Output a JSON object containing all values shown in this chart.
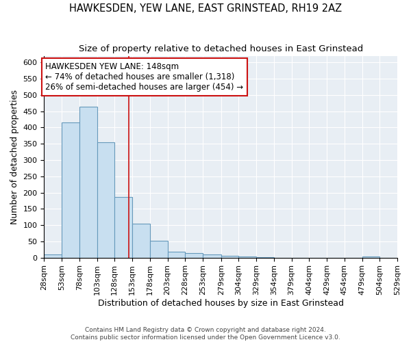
{
  "title": "HAWKESDEN, YEW LANE, EAST GRINSTEAD, RH19 2AZ",
  "subtitle": "Size of property relative to detached houses in East Grinstead",
  "xlabel": "Distribution of detached houses by size in East Grinstead",
  "ylabel": "Number of detached properties",
  "property_size": 148,
  "annotation_title": "HAWKESDEN YEW LANE: 148sqm",
  "annotation_line1": "← 74% of detached houses are smaller (1,318)",
  "annotation_line2": "26% of semi-detached houses are larger (454) →",
  "footer_line1": "Contains HM Land Registry data © Crown copyright and database right 2024.",
  "footer_line2": "Contains public sector information licensed under the Open Government Licence v3.0.",
  "bar_color": "#c8dff0",
  "bar_edge_color": "#6699bb",
  "vline_color": "#cc1111",
  "annotation_box_color": "#cc1111",
  "background_color": "#e8eef4",
  "bins": [
    28,
    53,
    78,
    103,
    128,
    153,
    178,
    203,
    228,
    253,
    279,
    304,
    329,
    354,
    379,
    404,
    429,
    454,
    479,
    504,
    529
  ],
  "counts": [
    10,
    415,
    465,
    355,
    187,
    105,
    52,
    18,
    14,
    10,
    5,
    3,
    1,
    0,
    0,
    0,
    0,
    0,
    3,
    0
  ],
  "ylim": [
    0,
    620
  ],
  "yticks": [
    0,
    50,
    100,
    150,
    200,
    250,
    300,
    350,
    400,
    450,
    500,
    550,
    600
  ],
  "title_fontsize": 10.5,
  "subtitle_fontsize": 9.5,
  "xlabel_fontsize": 9,
  "ylabel_fontsize": 9,
  "tick_fontsize": 8,
  "annotation_fontsize": 8.5
}
